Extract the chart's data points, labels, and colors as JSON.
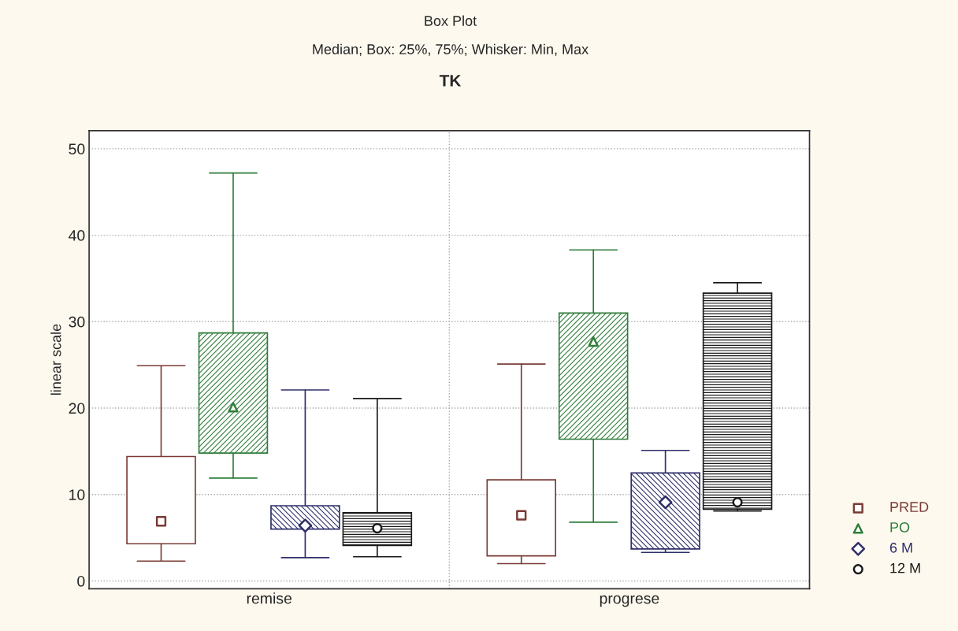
{
  "chart_data": {
    "type": "box",
    "title": "Box Plot",
    "subtitle": "Median; Box: 25%, 75%; Whisker: Min, Max",
    "annotations": [
      "TK"
    ],
    "ylabel": "linear scale",
    "categories": [
      "remise",
      "progrese"
    ],
    "ylim": [
      -0.9,
      52.1
    ],
    "yticks": [
      0,
      10,
      20,
      30,
      40,
      50
    ],
    "grid": true,
    "legend": "right",
    "series": [
      {
        "name": "PRED",
        "color": "#7a3b36",
        "marker": "square",
        "boxes": [
          {
            "low": 2.3,
            "q1": 4.3,
            "median": 6.9,
            "q3": 14.4,
            "high": 24.9
          },
          {
            "low": 2.0,
            "q1": 2.9,
            "median": 7.6,
            "q3": 11.7,
            "high": 25.1
          }
        ]
      },
      {
        "name": "PO",
        "color": "#2f7d3a",
        "marker": "triangle",
        "boxes": [
          {
            "low": 11.9,
            "q1": 14.8,
            "median": 20.1,
            "q3": 28.7,
            "high": 47.2
          },
          {
            "low": 6.8,
            "q1": 16.4,
            "median": 27.7,
            "q3": 31.0,
            "high": 38.3
          }
        ]
      },
      {
        "name": "6 M",
        "color": "#2f2f6b",
        "marker": "diamond",
        "boxes": [
          {
            "low": 2.7,
            "q1": 6.0,
            "median": 6.4,
            "q3": 8.7,
            "high": 22.1
          },
          {
            "low": 3.3,
            "q1": 3.7,
            "median": 9.1,
            "q3": 12.5,
            "high": 15.1
          }
        ]
      },
      {
        "name": "12 M",
        "color": "#1a1a1a",
        "marker": "circle",
        "boxes": [
          {
            "low": 2.8,
            "q1": 4.1,
            "median": 6.1,
            "q3": 7.9,
            "high": 21.1
          },
          {
            "low": 8.1,
            "q1": 8.3,
            "median": 9.1,
            "q3": 33.3,
            "high": 34.5
          }
        ]
      }
    ]
  }
}
